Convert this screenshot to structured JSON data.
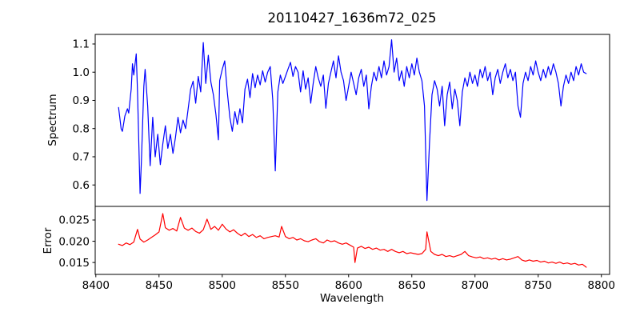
{
  "figure": {
    "title": "20110427_1636m72_025",
    "background": "#ffffff",
    "spine_color": "#000000",
    "text_color": "#000000"
  },
  "x_axis": {
    "label": "Wavelength",
    "lim": [
      8399.5,
      8806.5
    ],
    "ticks": [
      8400,
      8450,
      8500,
      8550,
      8600,
      8650,
      8700,
      8750,
      8800
    ],
    "ticklabels": [
      "8400",
      "8450",
      "8500",
      "8550",
      "8600",
      "8650",
      "8700",
      "8750",
      "8800"
    ]
  },
  "chart_data": [
    {
      "type": "line",
      "name": "spectrum",
      "ylabel": "Spectrum",
      "line_color": "#0000ff",
      "grid": false,
      "legend": null,
      "ylim": [
        0.524,
        1.134
      ],
      "yticks": [
        0.6,
        0.7,
        0.8,
        0.9,
        1.0,
        1.1
      ],
      "yticklabels": [
        "0.6",
        "0.7",
        "0.8",
        "0.9",
        "1.0",
        "1.1"
      ],
      "x": [
        8418,
        8420,
        8421,
        8423,
        8425,
        8426,
        8428,
        8429,
        8430,
        8432,
        8433,
        8435,
        8436,
        8438,
        8439,
        8441,
        8443,
        8445,
        8447,
        8449,
        8451,
        8453,
        8455,
        8457,
        8459,
        8461,
        8463,
        8465,
        8467,
        8469,
        8471,
        8473,
        8475,
        8477,
        8479,
        8481,
        8483,
        8485,
        8487,
        8489,
        8491,
        8493,
        8495,
        8497,
        8498,
        8500,
        8502,
        8504,
        8506,
        8508,
        8510,
        8512,
        8514,
        8516,
        8518,
        8520,
        8522,
        8524,
        8526,
        8528,
        8530,
        8532,
        8534,
        8536,
        8538,
        8540,
        8542,
        8544,
        8546,
        8548,
        8550,
        8552,
        8554,
        8556,
        8558,
        8560,
        8562,
        8564,
        8566,
        8568,
        8570,
        8572,
        8574,
        8576,
        8578,
        8580,
        8582,
        8584,
        8586,
        8588,
        8590,
        8592,
        8594,
        8596,
        8598,
        8600,
        8602,
        8604,
        8606,
        8608,
        8610,
        8612,
        8614,
        8616,
        8618,
        8620,
        8622,
        8624,
        8626,
        8628,
        8630,
        8632,
        8634,
        8636,
        8638,
        8640,
        8642,
        8644,
        8646,
        8648,
        8650,
        8652,
        8654,
        8656,
        8658,
        8660,
        8662,
        8664,
        8666,
        8668,
        8670,
        8672,
        8674,
        8676,
        8678,
        8680,
        8682,
        8684,
        8686,
        8688,
        8690,
        8692,
        8694,
        8696,
        8698,
        8700,
        8702,
        8704,
        8706,
        8708,
        8710,
        8712,
        8714,
        8716,
        8718,
        8720,
        8722,
        8724,
        8726,
        8728,
        8730,
        8732,
        8734,
        8736,
        8738,
        8740,
        8742,
        8744,
        8746,
        8748,
        8750,
        8752,
        8754,
        8756,
        8758,
        8760,
        8762,
        8764,
        8766,
        8768,
        8770,
        8772,
        8774,
        8776,
        8778,
        8780,
        8782,
        8784,
        8786,
        8788
      ],
      "y": [
        0.875,
        0.8,
        0.79,
        0.845,
        0.87,
        0.855,
        0.94,
        1.03,
        0.99,
        1.065,
        0.93,
        0.57,
        0.68,
        0.95,
        1.01,
        0.88,
        0.668,
        0.84,
        0.7,
        0.78,
        0.672,
        0.745,
        0.81,
        0.73,
        0.78,
        0.712,
        0.768,
        0.84,
        0.785,
        0.83,
        0.8,
        0.868,
        0.94,
        0.968,
        0.89,
        0.985,
        0.93,
        1.105,
        0.96,
        1.06,
        0.965,
        0.92,
        0.85,
        0.76,
        0.97,
        1.01,
        1.04,
        0.93,
        0.84,
        0.79,
        0.86,
        0.815,
        0.87,
        0.82,
        0.94,
        0.975,
        0.91,
        0.995,
        0.945,
        0.99,
        0.955,
        1.005,
        0.965,
        1.0,
        1.02,
        0.9,
        0.65,
        0.93,
        0.99,
        0.96,
        0.985,
        1.01,
        1.035,
        0.985,
        1.02,
        1.0,
        0.93,
        1.005,
        0.94,
        0.98,
        0.89,
        0.96,
        1.02,
        0.98,
        0.95,
        0.99,
        0.872,
        0.96,
        1.0,
        1.04,
        0.98,
        1.058,
        1.0,
        0.97,
        0.9,
        0.95,
        1.0,
        0.96,
        0.92,
        0.98,
        1.01,
        0.95,
        0.99,
        0.87,
        0.95,
        1.0,
        0.97,
        1.02,
        0.98,
        1.04,
        0.99,
        1.02,
        1.115,
        1.0,
        1.05,
        0.97,
        1.005,
        0.95,
        1.02,
        0.98,
        1.03,
        0.99,
        1.05,
        1.0,
        0.97,
        0.88,
        0.545,
        0.75,
        0.92,
        0.97,
        0.94,
        0.88,
        0.95,
        0.81,
        0.92,
        0.965,
        0.87,
        0.94,
        0.9,
        0.81,
        0.93,
        0.98,
        0.95,
        1.0,
        0.96,
        0.99,
        0.95,
        1.01,
        0.98,
        1.02,
        0.97,
        1.0,
        0.92,
        0.98,
        1.01,
        0.96,
        1.0,
        1.03,
        0.98,
        1.01,
        0.97,
        1.0,
        0.88,
        0.84,
        0.96,
        1.0,
        0.97,
        1.02,
        0.99,
        1.04,
        1.0,
        0.97,
        1.01,
        0.98,
        1.02,
        0.99,
        1.03,
        1.0,
        0.96,
        0.88,
        0.95,
        0.99,
        0.96,
        1.0,
        0.97,
        1.02,
        0.99,
        1.03,
        1.0,
        0.995
      ]
    },
    {
      "type": "line",
      "name": "error",
      "ylabel": "Error",
      "line_color": "#ff0000",
      "grid": false,
      "legend": null,
      "ylim": [
        0.0122,
        0.0282
      ],
      "yticks": [
        0.015,
        0.02,
        0.025
      ],
      "yticklabels": [
        "0.015",
        "0.020",
        "0.025"
      ],
      "x": [
        8418,
        8421,
        8424,
        8427,
        8430,
        8433,
        8435,
        8438,
        8441,
        8444,
        8447,
        8450,
        8453,
        8455,
        8458,
        8461,
        8464,
        8467,
        8470,
        8473,
        8476,
        8479,
        8482,
        8485,
        8488,
        8491,
        8494,
        8497,
        8500,
        8503,
        8506,
        8509,
        8512,
        8515,
        8518,
        8521,
        8524,
        8527,
        8530,
        8533,
        8536,
        8539,
        8542,
        8545,
        8547,
        8550,
        8553,
        8556,
        8559,
        8562,
        8565,
        8568,
        8571,
        8574,
        8577,
        8580,
        8583,
        8586,
        8589,
        8592,
        8595,
        8598,
        8601,
        8604,
        8605,
        8607,
        8610,
        8613,
        8616,
        8619,
        8622,
        8625,
        8628,
        8631,
        8634,
        8637,
        8640,
        8643,
        8646,
        8649,
        8652,
        8655,
        8658,
        8661,
        8662,
        8665,
        8668,
        8671,
        8674,
        8677,
        8680,
        8683,
        8686,
        8689,
        8692,
        8695,
        8698,
        8701,
        8704,
        8707,
        8710,
        8713,
        8716,
        8719,
        8722,
        8725,
        8728,
        8731,
        8734,
        8737,
        8740,
        8743,
        8746,
        8749,
        8752,
        8755,
        8758,
        8761,
        8764,
        8767,
        8770,
        8773,
        8776,
        8779,
        8782,
        8785,
        8788
      ],
      "y": [
        0.0193,
        0.019,
        0.0196,
        0.0192,
        0.0198,
        0.0228,
        0.0205,
        0.0198,
        0.0203,
        0.0209,
        0.0215,
        0.0222,
        0.0265,
        0.0232,
        0.0226,
        0.023,
        0.0224,
        0.0256,
        0.0231,
        0.0226,
        0.0231,
        0.0223,
        0.0219,
        0.0227,
        0.0252,
        0.0228,
        0.0235,
        0.0226,
        0.024,
        0.0229,
        0.0222,
        0.0227,
        0.0219,
        0.0213,
        0.0219,
        0.0211,
        0.0216,
        0.0209,
        0.0213,
        0.0206,
        0.0209,
        0.0211,
        0.0213,
        0.021,
        0.0235,
        0.0211,
        0.0206,
        0.0209,
        0.0203,
        0.0206,
        0.0201,
        0.0199,
        0.0203,
        0.0206,
        0.0199,
        0.0196,
        0.0203,
        0.0199,
        0.0201,
        0.0196,
        0.0193,
        0.0196,
        0.0191,
        0.0186,
        0.015,
        0.0184,
        0.0188,
        0.0183,
        0.0186,
        0.0181,
        0.0184,
        0.0179,
        0.0181,
        0.0176,
        0.0181,
        0.0176,
        0.0173,
        0.0176,
        0.0171,
        0.0173,
        0.0171,
        0.0169,
        0.0171,
        0.0181,
        0.0222,
        0.0176,
        0.0169,
        0.0166,
        0.0169,
        0.0164,
        0.0166,
        0.0163,
        0.0166,
        0.0169,
        0.0176,
        0.0166,
        0.0163,
        0.0161,
        0.0163,
        0.0159,
        0.0161,
        0.0158,
        0.016,
        0.0156,
        0.0159,
        0.0156,
        0.0158,
        0.0161,
        0.0164,
        0.0156,
        0.0153,
        0.0156,
        0.0153,
        0.0155,
        0.0151,
        0.0153,
        0.0149,
        0.0151,
        0.0148,
        0.0151,
        0.0147,
        0.0149,
        0.0146,
        0.0148,
        0.0144,
        0.0146,
        0.0139
      ]
    }
  ]
}
